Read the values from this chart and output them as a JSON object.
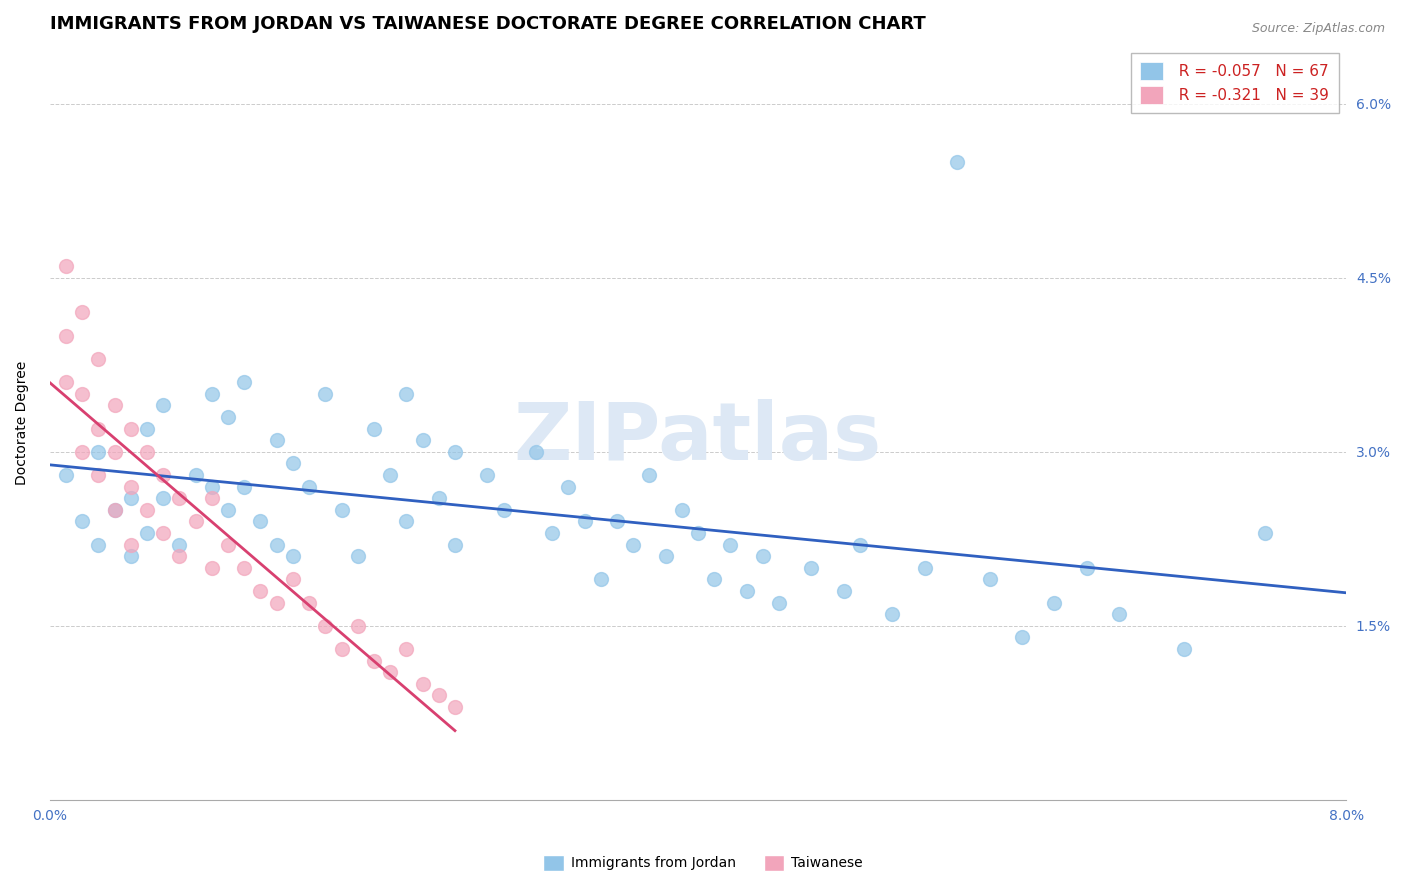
{
  "title": "IMMIGRANTS FROM JORDAN VS TAIWANESE DOCTORATE DEGREE CORRELATION CHART",
  "source": "Source: ZipAtlas.com",
  "ylabel": "Doctorate Degree",
  "xmin": 0.0,
  "xmax": 0.08,
  "ymin": 0.0,
  "ymax": 0.065,
  "yticks": [
    0.015,
    0.03,
    0.045,
    0.06
  ],
  "ytick_labels": [
    "1.5%",
    "3.0%",
    "4.5%",
    "6.0%"
  ],
  "legend_r1": "R = -0.057",
  "legend_n1": "N = 67",
  "legend_r2": "R = -0.321",
  "legend_n2": "N = 39",
  "color_jordan": "#92C5E8",
  "color_taiwanese": "#F2A5BB",
  "color_trendline_jordan": "#3060C0",
  "color_trendline_taiwanese": "#D84070",
  "watermark_color": "#DDE8F5",
  "background_color": "#FFFFFF",
  "grid_color": "#CCCCCC",
  "jordan_x": [
    0.001,
    0.002,
    0.003,
    0.003,
    0.004,
    0.005,
    0.005,
    0.006,
    0.006,
    0.007,
    0.007,
    0.008,
    0.009,
    0.01,
    0.01,
    0.011,
    0.011,
    0.012,
    0.012,
    0.013,
    0.014,
    0.014,
    0.015,
    0.015,
    0.016,
    0.017,
    0.018,
    0.019,
    0.02,
    0.021,
    0.022,
    0.022,
    0.023,
    0.024,
    0.025,
    0.025,
    0.027,
    0.028,
    0.03,
    0.031,
    0.032,
    0.033,
    0.034,
    0.035,
    0.036,
    0.037,
    0.038,
    0.039,
    0.04,
    0.041,
    0.042,
    0.043,
    0.044,
    0.045,
    0.047,
    0.049,
    0.05,
    0.052,
    0.054,
    0.056,
    0.058,
    0.06,
    0.062,
    0.064,
    0.066,
    0.07,
    0.075
  ],
  "jordan_y": [
    0.028,
    0.024,
    0.03,
    0.022,
    0.025,
    0.026,
    0.021,
    0.032,
    0.023,
    0.034,
    0.026,
    0.022,
    0.028,
    0.035,
    0.027,
    0.033,
    0.025,
    0.036,
    0.027,
    0.024,
    0.031,
    0.022,
    0.029,
    0.021,
    0.027,
    0.035,
    0.025,
    0.021,
    0.032,
    0.028,
    0.035,
    0.024,
    0.031,
    0.026,
    0.03,
    0.022,
    0.028,
    0.025,
    0.03,
    0.023,
    0.027,
    0.024,
    0.019,
    0.024,
    0.022,
    0.028,
    0.021,
    0.025,
    0.023,
    0.019,
    0.022,
    0.018,
    0.021,
    0.017,
    0.02,
    0.018,
    0.022,
    0.016,
    0.02,
    0.055,
    0.019,
    0.014,
    0.017,
    0.02,
    0.016,
    0.013,
    0.023
  ],
  "taiwanese_x": [
    0.001,
    0.001,
    0.001,
    0.002,
    0.002,
    0.002,
    0.003,
    0.003,
    0.003,
    0.004,
    0.004,
    0.004,
    0.005,
    0.005,
    0.005,
    0.006,
    0.006,
    0.007,
    0.007,
    0.008,
    0.008,
    0.009,
    0.01,
    0.01,
    0.011,
    0.012,
    0.013,
    0.014,
    0.015,
    0.016,
    0.017,
    0.018,
    0.019,
    0.02,
    0.021,
    0.022,
    0.023,
    0.024,
    0.025
  ],
  "taiwanese_y": [
    0.046,
    0.04,
    0.036,
    0.042,
    0.035,
    0.03,
    0.038,
    0.032,
    0.028,
    0.034,
    0.03,
    0.025,
    0.032,
    0.027,
    0.022,
    0.03,
    0.025,
    0.028,
    0.023,
    0.026,
    0.021,
    0.024,
    0.026,
    0.02,
    0.022,
    0.02,
    0.018,
    0.017,
    0.019,
    0.017,
    0.015,
    0.013,
    0.015,
    0.012,
    0.011,
    0.013,
    0.01,
    0.009,
    0.008
  ],
  "title_fontsize": 13,
  "axis_label_fontsize": 10,
  "tick_fontsize": 10,
  "legend_fontsize": 11
}
